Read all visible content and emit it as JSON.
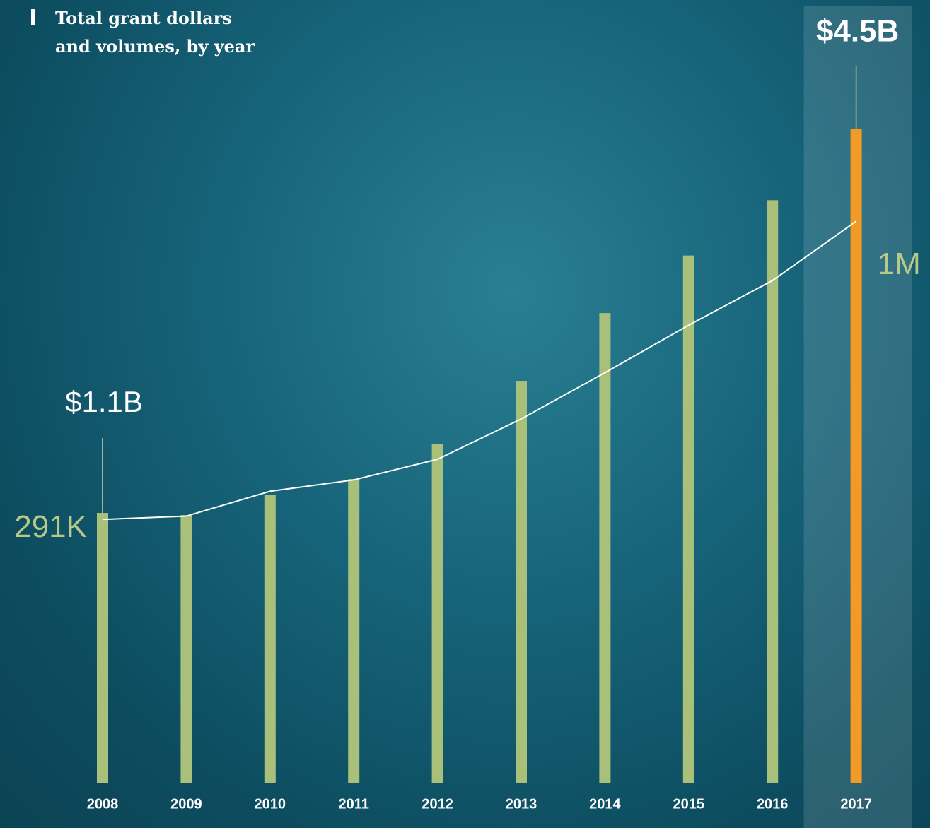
{
  "chart_data": {
    "type": "bar",
    "title": "Total grant dollars and volumes, by year",
    "categories": [
      "2008",
      "2009",
      "2010",
      "2011",
      "2012",
      "2013",
      "2014",
      "2015",
      "2016",
      "2017"
    ],
    "series": [
      {
        "type": "bar",
        "color": "#a9c07a",
        "highlight_color": "#f39a26",
        "values": [
          1.1,
          1.08,
          1.26,
          1.4,
          1.71,
          2.27,
          2.87,
          3.38,
          3.87,
          4.5
        ],
        "value_labels": [
          "$1.1B",
          null,
          null,
          null,
          null,
          null,
          null,
          null,
          null,
          "$4.5B"
        ]
      },
      {
        "type": "line",
        "axis": "y2",
        "color": "#ffffff",
        "values": [
          291000,
          299000,
          358000,
          385000,
          434000,
          530000,
          640000,
          753000,
          859000,
          1000000
        ],
        "value_labels": [
          "291K",
          null,
          null,
          null,
          null,
          null,
          null,
          null,
          null,
          "1M"
        ]
      }
    ],
    "ylim": [
      -1.29,
      5.33
    ],
    "y2lim": [
      -335000,
      1442000
    ],
    "highlight_index": 9
  }
}
